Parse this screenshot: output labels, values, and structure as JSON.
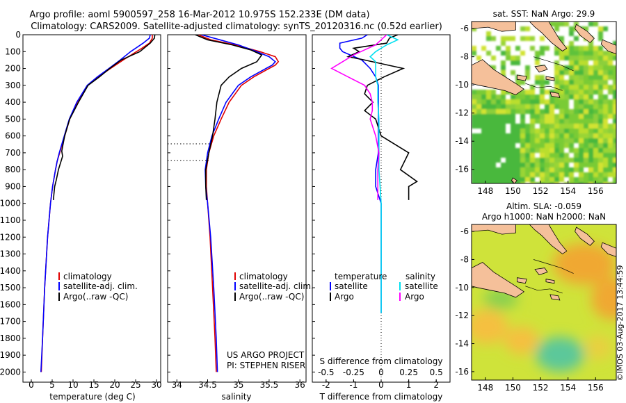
{
  "title_line1": "Argo profile: aoml 5900597_258 16-Mar-2012 10.975S 152.233E (DM data)",
  "title_line2": "Climatology: CARS2009. Satellite-adjusted climatology: synTS_20120316.nc (0.52d earlier)",
  "colors": {
    "climatology": "#e00000",
    "satellite": "#0000ff",
    "argo": "#000000",
    "argo_salinity": "#ff00ff",
    "satellite_salinity": "#00e0f0"
  },
  "depth_ticks": [
    0,
    100,
    200,
    300,
    400,
    500,
    600,
    700,
    800,
    900,
    1000,
    1100,
    1200,
    1300,
    1400,
    1500,
    1600,
    1700,
    1800,
    1900,
    2000
  ],
  "temperature_panel": {
    "xlabel": "temperature (deg C)",
    "xticks": [
      0,
      5,
      10,
      15,
      20,
      25,
      30
    ],
    "legend": [
      "climatology",
      "satellite-adj. clim.",
      "Argo(..raw -QC)"
    ],
    "chart_data": {
      "type": "line",
      "xlim": [
        -2,
        31
      ],
      "ylim": [
        0,
        2060
      ],
      "series": [
        {
          "name": "climatology",
          "pressure": [
            0,
            20,
            50,
            80,
            100,
            150,
            200,
            250,
            300,
            400,
            500,
            600,
            700,
            750,
            800,
            900,
            1000,
            1200,
            1500,
            1800,
            2000
          ],
          "values": [
            29.0,
            29.0,
            28.3,
            26.5,
            25.2,
            22.0,
            19.0,
            16.0,
            13.5,
            11.0,
            9.2,
            8.0,
            6.8,
            6.2,
            5.8,
            5.1,
            4.6,
            3.9,
            3.2,
            2.7,
            2.4
          ]
        },
        {
          "name": "satellite-adj. clim.",
          "pressure": [
            0,
            20,
            50,
            80,
            100,
            150,
            200,
            250,
            300,
            400,
            500,
            600,
            700,
            750,
            800,
            900,
            1000,
            1200,
            1500,
            1800,
            2000
          ],
          "values": [
            28.5,
            28.3,
            26.8,
            25.0,
            23.8,
            21.3,
            18.6,
            15.8,
            13.4,
            10.9,
            9.1,
            7.9,
            6.7,
            6.2,
            5.8,
            5.1,
            4.6,
            3.9,
            3.2,
            2.7,
            2.3
          ]
        },
        {
          "name": "Argo",
          "pressure": [
            0,
            20,
            50,
            80,
            100,
            150,
            200,
            250,
            300,
            400,
            500,
            600,
            650,
            690,
            720,
            760,
            800,
            860,
            900,
            950,
            980
          ],
          "values": [
            29.6,
            29.5,
            28.5,
            27.0,
            26.0,
            21.5,
            18.8,
            16.3,
            13.6,
            11.3,
            9.2,
            8.0,
            7.6,
            7.3,
            7.5,
            7.0,
            6.5,
            6.0,
            5.6,
            5.4,
            5.3
          ]
        }
      ]
    }
  },
  "salinity_panel": {
    "xlabel": "salinity",
    "xticks": [
      34,
      34.5,
      35,
      35.5,
      36
    ],
    "legend": [
      "climatology",
      "satellite-adj. clim.",
      "Argo(..raw -QC)"
    ],
    "credit1": "US ARGO PROJECT",
    "credit2": "PI: STEPHEN RISER",
    "chart_data": {
      "type": "line",
      "xlim": [
        33.85,
        36.1
      ],
      "ylim": [
        0,
        2060
      ],
      "series": [
        {
          "name": "climatology",
          "pressure": [
            0,
            30,
            60,
            100,
            130,
            160,
            180,
            200,
            250,
            300,
            400,
            500,
            600,
            700,
            800,
            900,
            1000,
            1200,
            1500,
            1800,
            2000
          ],
          "values": [
            34.35,
            34.55,
            34.95,
            35.35,
            35.6,
            35.65,
            35.6,
            35.5,
            35.25,
            35.05,
            34.85,
            34.72,
            34.6,
            34.52,
            34.48,
            34.48,
            34.5,
            34.54,
            34.58,
            34.62,
            34.64
          ]
        },
        {
          "name": "satellite-adj. clim.",
          "pressure": [
            0,
            30,
            60,
            100,
            130,
            160,
            180,
            200,
            250,
            300,
            400,
            500,
            600,
            700,
            800,
            900,
            1000,
            1200,
            1500,
            1800,
            2000
          ],
          "values": [
            34.4,
            34.7,
            35.0,
            35.3,
            35.5,
            35.6,
            35.55,
            35.45,
            35.2,
            35.0,
            34.8,
            34.68,
            34.57,
            34.5,
            34.46,
            34.47,
            34.5,
            34.55,
            34.6,
            34.64,
            34.66
          ]
        },
        {
          "name": "Argo",
          "pressure": [
            0,
            30,
            60,
            90,
            120,
            160,
            200,
            250,
            300,
            400,
            500,
            600,
            700,
            800,
            900,
            980
          ],
          "values": [
            34.3,
            34.5,
            34.9,
            35.2,
            35.38,
            35.3,
            35.05,
            34.85,
            34.72,
            34.65,
            34.62,
            34.58,
            34.52,
            34.47,
            34.47,
            34.48
          ]
        }
      ]
    }
  },
  "difference_panel": {
    "xlabel_bottom": "T difference from climatology",
    "xlabel_top": "S difference from climatology",
    "xticks_t": [
      -2,
      -1,
      0,
      1,
      2
    ],
    "xticks_s": [
      -0.5,
      -0.25,
      0,
      0.25,
      0.5
    ],
    "legend_temp_title": "temperature",
    "legend_sal_title": "salinity",
    "legend_entries": [
      "satellite",
      "Argo",
      "satellite",
      "Argo"
    ],
    "chart_data": {
      "type": "line",
      "xlim_t": [
        -2.5,
        2.5
      ],
      "ylim": [
        0,
        2060
      ],
      "series": [
        {
          "name": "temperature satellite",
          "pressure": [
            0,
            20,
            50,
            80,
            100,
            150,
            200,
            250,
            300,
            400,
            500,
            700,
            800,
            900,
            1000,
            1200,
            1500,
            1650
          ],
          "values": [
            -0.5,
            -0.7,
            -1.5,
            -1.5,
            -1.4,
            -0.7,
            -0.4,
            -0.2,
            -0.1,
            -0.1,
            -0.1,
            -0.1,
            -0.2,
            -0.2,
            0.0,
            0.0,
            0.0,
            0.0
          ]
        },
        {
          "name": "temperature Argo",
          "pressure": [
            0,
            20,
            50,
            80,
            100,
            130,
            150,
            200,
            250,
            300,
            350,
            400,
            450,
            500,
            600,
            700,
            800,
            870,
            900,
            950,
            980
          ],
          "values": [
            0.6,
            0.3,
            0.2,
            -1.0,
            -0.8,
            -1.2,
            -0.6,
            0.8,
            0.1,
            -0.5,
            -0.6,
            -0.3,
            -0.6,
            -0.2,
            0.0,
            1.0,
            0.7,
            1.3,
            1.0,
            1.0,
            1.0
          ]
        },
        {
          "name": "salinity satellite",
          "pressure": [
            0,
            30,
            60,
            100,
            130,
            160,
            200,
            250,
            300,
            400,
            500,
            600,
            700,
            800,
            900,
            1000,
            1200,
            1500,
            1650
          ],
          "values": [
            0.05,
            0.15,
            0.05,
            -0.05,
            -0.1,
            -0.05,
            -0.05,
            -0.05,
            -0.03,
            -0.03,
            -0.02,
            -0.02,
            -0.02,
            -0.02,
            -0.01,
            0.0,
            0.0,
            0.0,
            0.0
          ]
        },
        {
          "name": "salinity Argo",
          "pressure": [
            0,
            30,
            60,
            90,
            120,
            160,
            200,
            250,
            300,
            350,
            400,
            450,
            500,
            600,
            700,
            800,
            900,
            980
          ],
          "values": [
            0.05,
            0.0,
            -0.05,
            -0.15,
            -0.25,
            -0.35,
            -0.45,
            -0.3,
            -0.15,
            -0.1,
            -0.08,
            -0.08,
            -0.1,
            -0.05,
            -0.02,
            -0.03,
            -0.03,
            -0.03
          ]
        }
      ]
    }
  },
  "map_top": {
    "title": "sat. SST: NaN Argo: 29.9",
    "xticks": [
      148,
      150,
      152,
      154,
      156
    ],
    "yticks": [
      -6,
      -8,
      -10,
      -12,
      -14,
      -16
    ]
  },
  "map_bottom": {
    "title1": "Altim. SLA: -0.059",
    "title2": "Argo h1000: NaN h2000: NaN",
    "xticks": [
      148,
      150,
      152,
      154,
      156
    ],
    "yticks": [
      -6,
      -8,
      -10,
      -12,
      -14,
      -16
    ]
  },
  "watermark": "©IMOS 03-Aug-2017 13:44:59"
}
